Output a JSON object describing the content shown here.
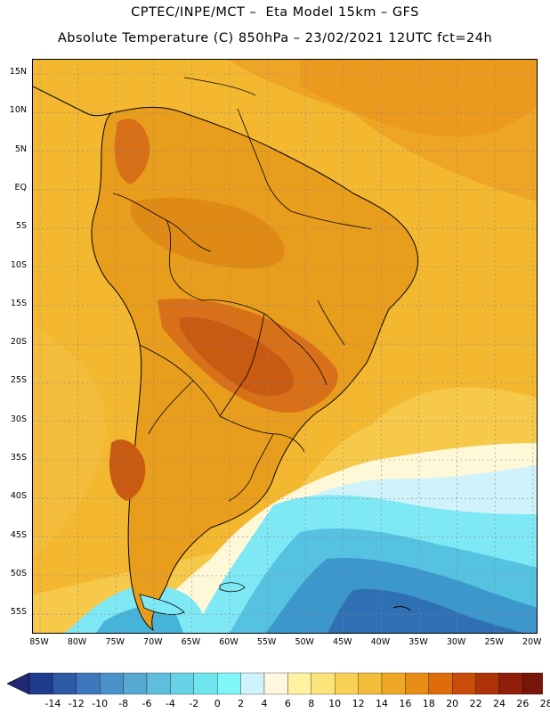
{
  "title_line1": "CPTEC/INPE/MCT –  Eta Model 15km – GFS",
  "title_line2": "Absolute Temperature (C) 850hPa – 23/02/2021 12UTC fct=24h",
  "lat_labels": [
    "15N",
    "10N",
    "5N",
    "EQ",
    "5S",
    "10S",
    "15S",
    "20S",
    "25S",
    "30S",
    "35S",
    "40S",
    "45S",
    "50S",
    "55S"
  ],
  "lon_labels": [
    "85W",
    "80W",
    "75W",
    "70W",
    "65W",
    "60W",
    "55W",
    "50W",
    "45W",
    "40W",
    "35W",
    "30W",
    "25W",
    "20W"
  ],
  "colorbar": {
    "labels": [
      "-14",
      "-12",
      "-10",
      "-8",
      "-6",
      "-4",
      "-2",
      "0",
      "2",
      "4",
      "6",
      "8",
      "10",
      "12",
      "14",
      "16",
      "18",
      "20",
      "22",
      "24",
      "26",
      "28"
    ],
    "colors": [
      "#1f3b8c",
      "#2e5aa6",
      "#3c78bb",
      "#4a92c8",
      "#58a8d4",
      "#5fbedd",
      "#66d4e6",
      "#6fe6ee",
      "#7ff6f8",
      "#cff2fb",
      "#fff8e0",
      "#fff3a3",
      "#fde47a",
      "#f9d155",
      "#f3bd3b",
      "#efa825",
      "#e98d14",
      "#de6b0c",
      "#c94c08",
      "#ae3307",
      "#8f1f08",
      "#761608"
    ],
    "end_left": "#202878",
    "end_right": "#6a0a18"
  },
  "colors": {
    "ocean_warm": "#f3b62f",
    "land": "#e99d1c",
    "hot": "#d2620f",
    "very_hot": "#b84810",
    "cool": "#fff8d8",
    "cold_light": "#7fe8f5",
    "cold": "#46b4d8",
    "colder": "#3a8cc4",
    "coldest": "#2f68ad"
  }
}
